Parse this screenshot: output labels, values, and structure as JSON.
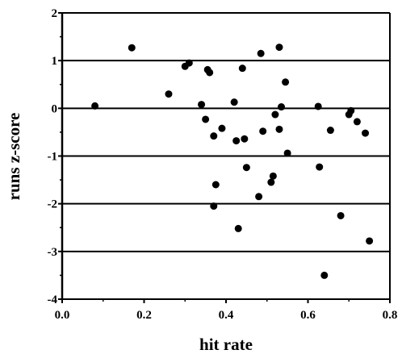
{
  "chart_data": {
    "type": "scatter",
    "xlabel": "hit rate",
    "ylabel": "runs z-score",
    "xlim": [
      0.0,
      0.8
    ],
    "ylim": [
      -4,
      2
    ],
    "x_ticks": [
      "0.0",
      "0.2",
      "0.4",
      "0.6",
      "0.8"
    ],
    "y_ticks": [
      "2",
      "1",
      "0",
      "-1",
      "-2",
      "-3",
      "-4"
    ],
    "x_tick_values": [
      0.0,
      0.2,
      0.4,
      0.6,
      0.8
    ],
    "y_tick_values": [
      2,
      1,
      0,
      -1,
      -2,
      -3,
      -4
    ],
    "grid": "horizontal",
    "marker_color": "#000000",
    "points": [
      {
        "x": 0.08,
        "y": 0.05
      },
      {
        "x": 0.17,
        "y": 1.27
      },
      {
        "x": 0.26,
        "y": 0.3
      },
      {
        "x": 0.3,
        "y": 0.88
      },
      {
        "x": 0.31,
        "y": 0.95
      },
      {
        "x": 0.34,
        "y": 0.08
      },
      {
        "x": 0.35,
        "y": -0.23
      },
      {
        "x": 0.355,
        "y": 0.81
      },
      {
        "x": 0.36,
        "y": 0.75
      },
      {
        "x": 0.37,
        "y": -0.58
      },
      {
        "x": 0.375,
        "y": -1.6
      },
      {
        "x": 0.37,
        "y": -2.05
      },
      {
        "x": 0.39,
        "y": -0.42
      },
      {
        "x": 0.42,
        "y": 0.13
      },
      {
        "x": 0.425,
        "y": -0.68
      },
      {
        "x": 0.43,
        "y": -2.52
      },
      {
        "x": 0.44,
        "y": 0.84
      },
      {
        "x": 0.445,
        "y": -0.64
      },
      {
        "x": 0.45,
        "y": -1.24
      },
      {
        "x": 0.48,
        "y": -1.85
      },
      {
        "x": 0.485,
        "y": 1.15
      },
      {
        "x": 0.49,
        "y": -0.48
      },
      {
        "x": 0.51,
        "y": -1.55
      },
      {
        "x": 0.515,
        "y": -1.42
      },
      {
        "x": 0.52,
        "y": -0.13
      },
      {
        "x": 0.53,
        "y": 1.28
      },
      {
        "x": 0.535,
        "y": 0.03
      },
      {
        "x": 0.53,
        "y": -0.44
      },
      {
        "x": 0.545,
        "y": 0.55
      },
      {
        "x": 0.55,
        "y": -0.94
      },
      {
        "x": 0.625,
        "y": 0.04
      },
      {
        "x": 0.628,
        "y": -1.23
      },
      {
        "x": 0.64,
        "y": -3.5
      },
      {
        "x": 0.655,
        "y": -0.46
      },
      {
        "x": 0.68,
        "y": -2.25
      },
      {
        "x": 0.7,
        "y": -0.13
      },
      {
        "x": 0.705,
        "y": -0.05
      },
      {
        "x": 0.72,
        "y": -0.28
      },
      {
        "x": 0.74,
        "y": -0.52
      },
      {
        "x": 0.75,
        "y": -2.78
      }
    ]
  }
}
